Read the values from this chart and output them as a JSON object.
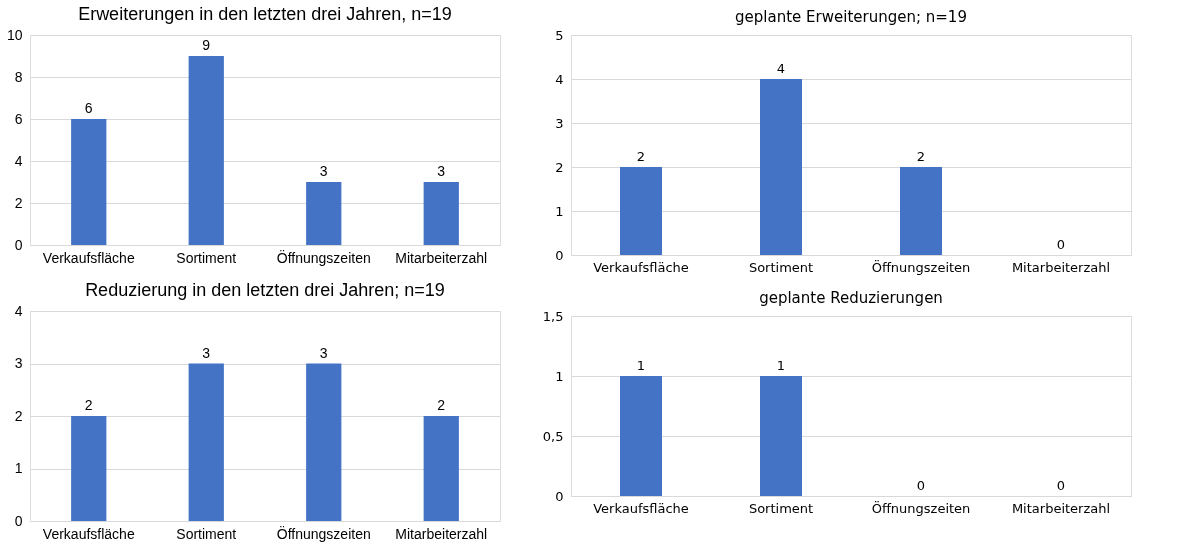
{
  "chart_data": [
    {
      "type": "bar",
      "title": "Erweiterungen in den letzten drei Jahren, n=19",
      "categories": [
        "Verkaufsfläche",
        "Sortiment",
        "Öffnungszeiten",
        "Mitarbeiterzahl"
      ],
      "values": [
        6,
        9,
        3,
        3
      ],
      "color": "#4472c4",
      "ylim": [
        0,
        10
      ],
      "yticks": [
        0,
        2,
        4,
        6,
        8,
        10
      ],
      "grid": "y",
      "data_labels": true
    },
    {
      "type": "bar",
      "title": "geplante Erweiterungen; n=19",
      "categories": [
        "Verkaufsfläche",
        "Sortiment",
        "Öffnungszeiten",
        "Mitarbeiterzahl"
      ],
      "values": [
        2,
        4,
        2,
        0
      ],
      "color": "#4472c4",
      "ylim": [
        0,
        5
      ],
      "yticks": [
        0,
        1,
        2,
        3,
        4,
        5
      ],
      "grid": "y",
      "data_labels": true
    },
    {
      "type": "bar",
      "title": "Reduzierung in den letzten drei Jahren; n=19",
      "categories": [
        "Verkaufsfläche",
        "Sortiment",
        "Öffnungszeiten",
        "Mitarbeiterzahl"
      ],
      "values": [
        2,
        3,
        3,
        2
      ],
      "color": "#4472c4",
      "ylim": [
        0,
        4
      ],
      "yticks": [
        0,
        1,
        2,
        3,
        4
      ],
      "grid": "y",
      "data_labels": true
    },
    {
      "type": "bar",
      "title": "geplante Reduzierungen",
      "categories": [
        "Verkaufsfläche",
        "Sortiment",
        "Öffnungszeiten",
        "Mitarbeiterzahl"
      ],
      "values": [
        1,
        1,
        0,
        0
      ],
      "color": "#4472c4",
      "ylim": [
        0,
        1.5
      ],
      "yticks": [
        0,
        {
          "value": 0.5,
          "label": "0,5"
        },
        1,
        {
          "value": 1.5,
          "label": "1,5"
        }
      ],
      "grid": "y",
      "data_labels": true
    }
  ]
}
